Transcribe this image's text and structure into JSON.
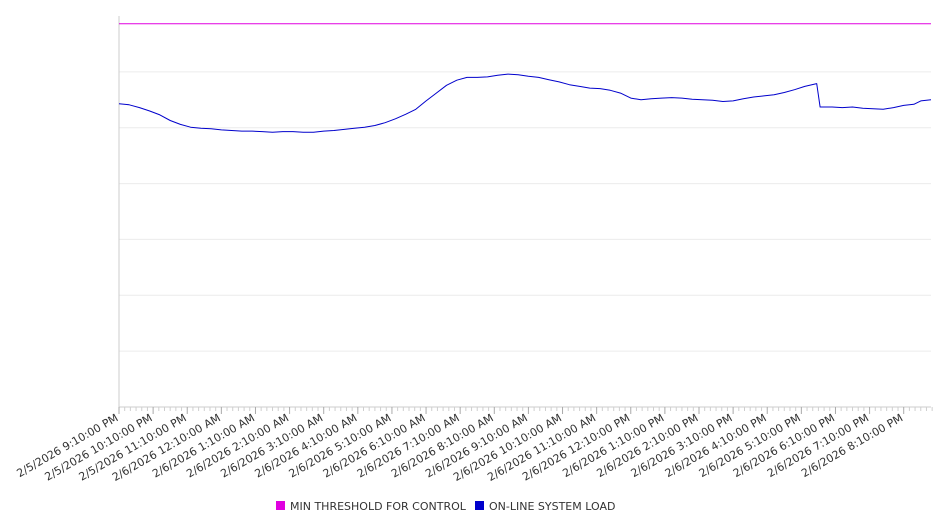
{
  "chart_data": {
    "type": "line",
    "title": "",
    "xlabel": "",
    "ylabel": "",
    "grid": true,
    "legend_position": "bottom-center",
    "x_tick_labels": [
      "2/5/2026 9:10:00 PM",
      "2/5/2026 10:10:00 PM",
      "2/5/2026 11:10:00 PM",
      "2/6/2026 12:10:00 AM",
      "2/6/2026 1:10:00 AM",
      "2/6/2026 2:10:00 AM",
      "2/6/2026 3:10:00 AM",
      "2/6/2026 4:10:00 AM",
      "2/6/2026 5:10:00 AM",
      "2/6/2026 6:10:00 AM",
      "2/6/2026 7:10:00 AM",
      "2/6/2026 8:10:00 AM",
      "2/6/2026 9:10:00 AM",
      "2/6/2026 10:10:00 AM",
      "2/6/2026 11:10:00 AM",
      "2/6/2026 12:10:00 PM",
      "2/6/2026 1:10:00 PM",
      "2/6/2026 2:10:00 PM",
      "2/6/2026 3:10:00 PM",
      "2/6/2026 4:10:00 PM",
      "2/6/2026 5:10:00 PM",
      "2/6/2026 6:10:00 PM",
      "2/6/2026 7:10:00 PM",
      "2/6/2026 8:10:00 PM"
    ],
    "ylim": [
      0,
      7
    ],
    "series": [
      {
        "name": "MIN THRESHOLD FOR CONTROL",
        "color": "#e000e0",
        "points": [
          [
            0,
            6.86
          ],
          [
            23.8,
            6.86
          ]
        ]
      },
      {
        "name": "ON-LINE SYSTEM LOAD",
        "color": "#0000cc",
        "points": [
          [
            0,
            5.43
          ],
          [
            0.3,
            5.41
          ],
          [
            0.6,
            5.36
          ],
          [
            0.9,
            5.3
          ],
          [
            1.2,
            5.23
          ],
          [
            1.5,
            5.13
          ],
          [
            1.8,
            5.06
          ],
          [
            2.1,
            5.01
          ],
          [
            2.4,
            4.99
          ],
          [
            2.7,
            4.98
          ],
          [
            3.0,
            4.96
          ],
          [
            3.3,
            4.95
          ],
          [
            3.6,
            4.94
          ],
          [
            3.9,
            4.94
          ],
          [
            4.2,
            4.93
          ],
          [
            4.5,
            4.92
          ],
          [
            4.8,
            4.93
          ],
          [
            5.1,
            4.93
          ],
          [
            5.4,
            4.92
          ],
          [
            5.7,
            4.92
          ],
          [
            6.0,
            4.94
          ],
          [
            6.3,
            4.95
          ],
          [
            6.6,
            4.97
          ],
          [
            6.9,
            4.99
          ],
          [
            7.2,
            5.01
          ],
          [
            7.5,
            5.04
          ],
          [
            7.8,
            5.09
          ],
          [
            8.1,
            5.16
          ],
          [
            8.4,
            5.24
          ],
          [
            8.7,
            5.33
          ],
          [
            9.0,
            5.48
          ],
          [
            9.3,
            5.62
          ],
          [
            9.6,
            5.76
          ],
          [
            9.9,
            5.85
          ],
          [
            10.2,
            5.9
          ],
          [
            10.5,
            5.9
          ],
          [
            10.8,
            5.91
          ],
          [
            11.1,
            5.94
          ],
          [
            11.4,
            5.96
          ],
          [
            11.7,
            5.95
          ],
          [
            12.0,
            5.92
          ],
          [
            12.3,
            5.9
          ],
          [
            12.6,
            5.86
          ],
          [
            12.9,
            5.82
          ],
          [
            13.2,
            5.77
          ],
          [
            13.5,
            5.74
          ],
          [
            13.8,
            5.71
          ],
          [
            14.1,
            5.7
          ],
          [
            14.4,
            5.67
          ],
          [
            14.7,
            5.62
          ],
          [
            15.0,
            5.53
          ],
          [
            15.3,
            5.5
          ],
          [
            15.6,
            5.52
          ],
          [
            15.9,
            5.53
          ],
          [
            16.2,
            5.54
          ],
          [
            16.5,
            5.53
          ],
          [
            16.8,
            5.51
          ],
          [
            17.1,
            5.5
          ],
          [
            17.4,
            5.49
          ],
          [
            17.7,
            5.47
          ],
          [
            18.0,
            5.48
          ],
          [
            18.3,
            5.52
          ],
          [
            18.6,
            5.55
          ],
          [
            18.9,
            5.57
          ],
          [
            19.2,
            5.59
          ],
          [
            19.5,
            5.63
          ],
          [
            19.8,
            5.68
          ],
          [
            20.1,
            5.74
          ],
          [
            20.45,
            5.79
          ],
          [
            20.55,
            5.37
          ],
          [
            20.9,
            5.37
          ],
          [
            21.2,
            5.36
          ],
          [
            21.5,
            5.37
          ],
          [
            21.8,
            5.35
          ],
          [
            22.1,
            5.34
          ],
          [
            22.4,
            5.33
          ],
          [
            22.7,
            5.36
          ],
          [
            23.0,
            5.4
          ],
          [
            23.3,
            5.42
          ],
          [
            23.5,
            5.48
          ],
          [
            23.8,
            5.5
          ]
        ]
      }
    ]
  }
}
